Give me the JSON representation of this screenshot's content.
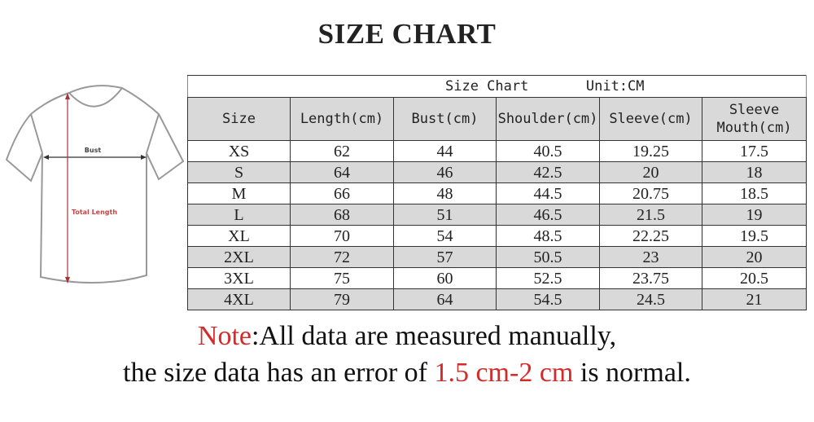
{
  "title": "SIZE CHART",
  "illustration": {
    "bust_label": "Bust",
    "length_label": "Total Length"
  },
  "table": {
    "caption": "Size Chart",
    "unit": "Unit:CM",
    "headers": [
      "Size",
      "Length(cm)",
      "Bust(cm)",
      "Shoulder(cm)",
      "Sleeve(cm)",
      "Sleeve\nMouth(cm)"
    ],
    "header_sleeve_mouth_1": "Sleeve",
    "header_sleeve_mouth_2": "Mouth(cm)",
    "rows": [
      [
        "XS",
        "62",
        "44",
        "40.5",
        "19.25",
        "17.5"
      ],
      [
        "S",
        "64",
        "46",
        "42.5",
        "20",
        "18"
      ],
      [
        "M",
        "66",
        "48",
        "44.5",
        "20.75",
        "18.5"
      ],
      [
        "L",
        "68",
        "51",
        "46.5",
        "21.5",
        "19"
      ],
      [
        "XL",
        "70",
        "54",
        "48.5",
        "22.25",
        "19.5"
      ],
      [
        "2XL",
        "72",
        "57",
        "50.5",
        "23",
        "20"
      ],
      [
        "3XL",
        "75",
        "60",
        "52.5",
        "23.75",
        "20.5"
      ],
      [
        "4XL",
        "79",
        "64",
        "54.5",
        "24.5",
        "21"
      ]
    ]
  },
  "note": {
    "label": "Note",
    "line1": ":All data are measured manually,",
    "line2_pre": "the size data has an error of ",
    "line2_range": "1.5 cm-2 cm",
    "line2_post": " is normal."
  },
  "colors": {
    "accent_red": "#d42a2a",
    "row_shade": "#d9d9d9"
  }
}
